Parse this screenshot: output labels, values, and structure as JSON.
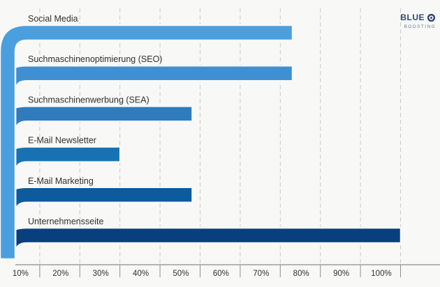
{
  "logo": {
    "word": "BLUE",
    "sub": "BOOSTING"
  },
  "chart_data": {
    "type": "bar",
    "orientation": "horizontal",
    "categories": [
      "Social Media",
      "Suchmaschinenoptimierung (SEO)",
      "Suchmaschinenwerbung (SEA)",
      "E-Mail Newsletter",
      "E-Mail Marketing",
      "Unternehmensseite"
    ],
    "values": [
      73,
      73,
      48,
      30,
      48,
      100
    ],
    "colors": [
      "#4a9fdf",
      "#3f90d2",
      "#2f7bbd",
      "#1672b3",
      "#0d5a9c",
      "#0a3f7e"
    ],
    "x_ticks": [
      "10%",
      "20%",
      "30%",
      "40%",
      "50%",
      "60%",
      "70%",
      "80%",
      "90%",
      "100%"
    ],
    "xlim": [
      0,
      100
    ],
    "grid": "vertical-dashed",
    "legend": "none"
  }
}
